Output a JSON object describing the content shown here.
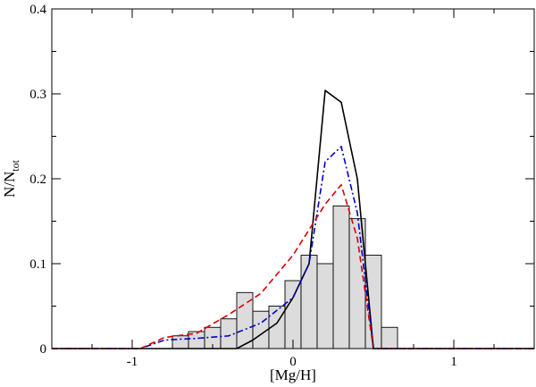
{
  "chart_data": {
    "type": "bar",
    "xlabel": "[Mg/H]",
    "ylabel_main": "N/N",
    "ylabel_sub": "tot",
    "xlim": [
      -1.5,
      1.5
    ],
    "ylim": [
      0,
      0.4
    ],
    "x_ticks": [
      -1,
      0,
      1
    ],
    "x_tick_labels": [
      "-1",
      "0",
      "1"
    ],
    "x_minor_step": 0.25,
    "y_ticks": [
      0,
      0.1,
      0.2,
      0.3,
      0.4
    ],
    "y_tick_labels": [
      "0",
      "0.1",
      "0.2",
      "0.3",
      "0.4"
    ],
    "y_minor_step": 0.05,
    "grid": false,
    "bin_width": 0.1,
    "bar_color": "#dcdcdc",
    "bars": [
      {
        "x": -0.7,
        "value": 0.015
      },
      {
        "x": -0.6,
        "value": 0.02
      },
      {
        "x": -0.5,
        "value": 0.025
      },
      {
        "x": -0.4,
        "value": 0.035
      },
      {
        "x": -0.3,
        "value": 0.066
      },
      {
        "x": -0.2,
        "value": 0.044
      },
      {
        "x": -0.1,
        "value": 0.05
      },
      {
        "x": 0.0,
        "value": 0.08
      },
      {
        "x": 0.1,
        "value": 0.11
      },
      {
        "x": 0.2,
        "value": 0.1
      },
      {
        "x": 0.3,
        "value": 0.168
      },
      {
        "x": 0.4,
        "value": 0.153
      },
      {
        "x": 0.5,
        "value": 0.11
      },
      {
        "x": 0.6,
        "value": 0.025
      }
    ],
    "series": [
      {
        "color": "#000000",
        "dash": "",
        "x": [
          -1.5,
          -0.35,
          -0.25,
          -0.1,
          0.0,
          0.1,
          0.2,
          0.3,
          0.4,
          0.5,
          1.5
        ],
        "y": [
          0,
          0,
          0.01,
          0.03,
          0.06,
          0.1,
          0.304,
          0.29,
          0.2,
          0,
          0
        ]
      },
      {
        "color": "#0000cc",
        "dash": "7,3,2,3",
        "x": [
          -1.5,
          -0.95,
          -0.8,
          -0.6,
          -0.4,
          -0.2,
          0.0,
          0.1,
          0.2,
          0.3,
          0.4,
          0.5,
          1.5
        ],
        "y": [
          0,
          0,
          0.01,
          0.012,
          0.015,
          0.03,
          0.06,
          0.1,
          0.22,
          0.238,
          0.16,
          0,
          0
        ]
      },
      {
        "color": "#dd0000",
        "dash": "7,4",
        "x": [
          -1.5,
          -0.95,
          -0.8,
          -0.6,
          -0.4,
          -0.2,
          0.0,
          0.2,
          0.3,
          0.4,
          0.5,
          1.5
        ],
        "y": [
          0,
          0,
          0.013,
          0.018,
          0.04,
          0.065,
          0.11,
          0.17,
          0.193,
          0.13,
          0,
          0
        ]
      }
    ]
  }
}
